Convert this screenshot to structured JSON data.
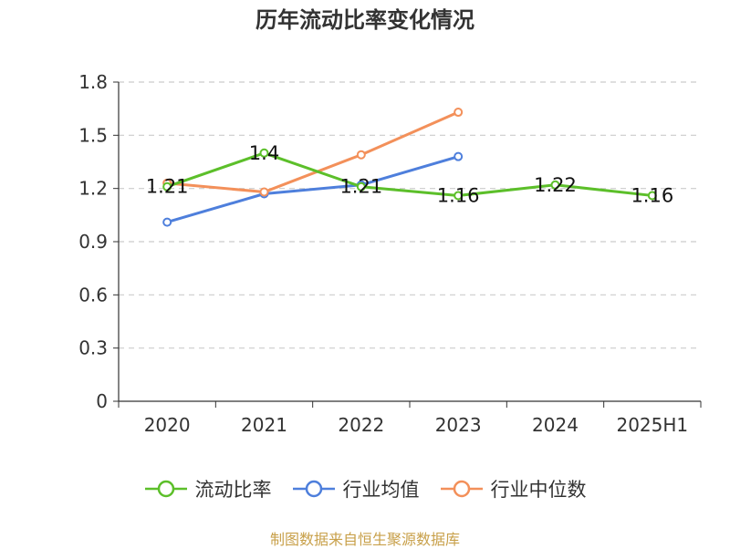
{
  "title": "历年流动比率变化情况",
  "source": "制图数据来自恒生聚源数据库",
  "chart_data": {
    "type": "line",
    "categories": [
      "2020",
      "2021",
      "2022",
      "2023",
      "2024",
      "2025H1"
    ],
    "ylim": [
      0,
      1.8
    ],
    "yticks": [
      "0",
      "0.3",
      "0.6",
      "0.9",
      "1.2",
      "1.5",
      "1.8"
    ],
    "grid": true,
    "legend_position": "bottom",
    "series": [
      {
        "name": "流动比率",
        "color": "#5cbf2a",
        "values": [
          1.21,
          1.4,
          1.21,
          1.16,
          1.22,
          1.16
        ],
        "labels": [
          "1.21",
          "1.4",
          "1.21",
          "1.16",
          "1.22",
          "1.16"
        ]
      },
      {
        "name": "行业均值",
        "color": "#4e7fdc",
        "values": [
          1.01,
          1.17,
          1.22,
          1.38,
          null,
          null
        ]
      },
      {
        "name": "行业中位数",
        "color": "#f3905a",
        "values": [
          1.23,
          1.18,
          1.39,
          1.63,
          null,
          null
        ]
      }
    ]
  }
}
